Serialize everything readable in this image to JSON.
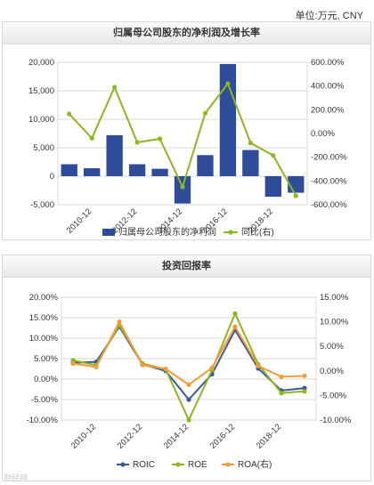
{
  "unit_label": "单位:万元, CNY",
  "watermark": "财经网",
  "colors": {
    "bar": "#2f4c9a",
    "line": "#8db71e",
    "roic": "#3b5998",
    "roe": "#8db71e",
    "roa": "#f39c3a",
    "grid": "#d9d9d9"
  },
  "chart_data": [
    {
      "type": "bar",
      "title": "归属母公司股东的净利润及增长率",
      "x_ticks": [
        "2010-12",
        "2012-12",
        "2014-12",
        "2016-12",
        "2018-12"
      ],
      "y_left_ticks": [
        "20,000",
        "15,000",
        "10,000",
        "5,000",
        "0",
        "-5,000"
      ],
      "y_right_ticks": [
        "600.00%",
        "400.00%",
        "200.00%",
        "0.00%",
        "-200.00%",
        "-400.00%",
        "-600.00%"
      ],
      "ylim_left": [
        -5000,
        20000
      ],
      "ylim_right": [
        -600,
        600
      ],
      "series": [
        {
          "name": "归属母公司股东的净利润",
          "kind": "bar",
          "axis": "left",
          "values": [
            2100,
            1400,
            7200,
            2100,
            1300,
            -4800,
            3700,
            19700,
            4600,
            -3600,
            -2900
          ]
        },
        {
          "name": "同比(右)",
          "kind": "line",
          "axis": "right",
          "values": [
            165,
            -40,
            390,
            -75,
            -45,
            -450,
            170,
            420,
            -80,
            -185,
            -525
          ]
        }
      ]
    },
    {
      "type": "line",
      "title": "投资回报率",
      "x_ticks": [
        "2010-12",
        "2012-12",
        "2014-12",
        "2016-12",
        "2018-12"
      ],
      "y_left_ticks": [
        "20.00%",
        "15.00%",
        "10.00%",
        "5.00%",
        "0.00%",
        "-5.00%",
        "-10.00%"
      ],
      "y_right_ticks": [
        "15.00%",
        "10.00%",
        "5.00%",
        "0.00%",
        "-5.00%",
        "-10.00%"
      ],
      "ylim_left": [
        -10,
        20
      ],
      "ylim_right": [
        -10,
        15
      ],
      "series": [
        {
          "name": "ROIC",
          "axis": "left",
          "values": [
            4.0,
            4.2,
            12.8,
            3.6,
            2.0,
            -5.0,
            1.2,
            12.0,
            2.6,
            -2.8,
            -2.2
          ]
        },
        {
          "name": "ROE",
          "axis": "left",
          "values": [
            4.6,
            3.4,
            13.2,
            3.8,
            2.4,
            -10.0,
            2.2,
            16.0,
            3.6,
            -3.4,
            -3.0
          ]
        },
        {
          "name": "ROA(右)",
          "axis": "right",
          "values": [
            1.5,
            0.8,
            10.0,
            1.2,
            0.4,
            -2.8,
            0.6,
            9.0,
            1.0,
            -1.2,
            -1.0
          ]
        }
      ]
    }
  ]
}
